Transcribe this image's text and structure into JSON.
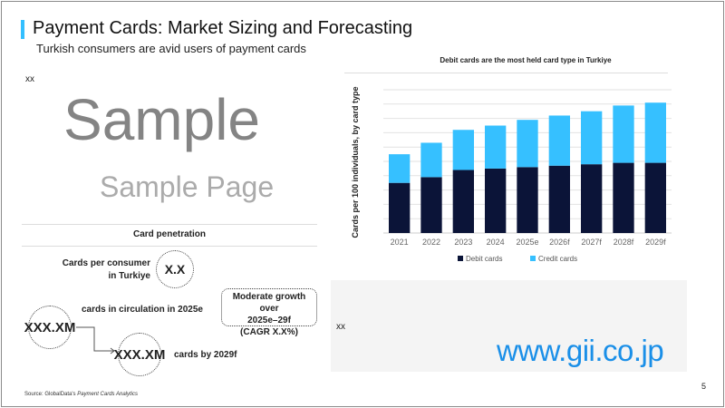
{
  "header": {
    "title": "Payment Cards: Market Sizing and Forecasting",
    "subtitle": "Turkish consumers are avid users of payment cards"
  },
  "left": {
    "text_placeholder": "xx",
    "card_penetration": {
      "title": "Card penetration",
      "cards_per_consumer_label": "Cards per consumer in Turkiye",
      "cards_per_consumer_value": "X.X",
      "circulation_value": "XXX.XM",
      "circulation_label": "cards in circulation in 2025e",
      "forecast_value": "XXX.XM",
      "forecast_label": "cards by 2029f",
      "growth_line1": "Moderate growth over",
      "growth_line2": "2025e–29f",
      "growth_line3": "(CAGR X.X%)"
    }
  },
  "right": {
    "text_placeholder": "xx"
  },
  "source": {
    "prefix": "Source: GlobalData's ",
    "italic": "Payment Cards Analytics"
  },
  "page_number": "5",
  "watermarks": {
    "sample_big": "Sample",
    "sample_small": "Sample Page",
    "site": "www.gii.co.jp"
  },
  "colors": {
    "accent": "#33bfff",
    "debit": "#0b1438",
    "credit": "#36c0ff",
    "site": "#1a8fe8"
  },
  "chart_data": {
    "type": "bar",
    "stacked": true,
    "title": "Debit cards are the most held card type in Turkiye",
    "ylabel": "Cards per 100 individuals, by card type",
    "categories": [
      "2021",
      "2022",
      "2023",
      "2024",
      "2025e",
      "2026f",
      "2027f",
      "2028f",
      "2029f"
    ],
    "series": [
      {
        "name": "Debit cards",
        "color": "#0b1438",
        "values": [
          3.5,
          3.9,
          4.4,
          4.5,
          4.6,
          4.7,
          4.8,
          4.9,
          4.9
        ]
      },
      {
        "name": "Credit cards",
        "color": "#36c0ff",
        "values": [
          2.0,
          2.4,
          2.8,
          3.0,
          3.3,
          3.5,
          3.7,
          4.0,
          4.2
        ]
      }
    ],
    "ylim": [
      0,
      10
    ],
    "grid": true,
    "y_tick_labels_shown": false,
    "legend": "bottom"
  }
}
